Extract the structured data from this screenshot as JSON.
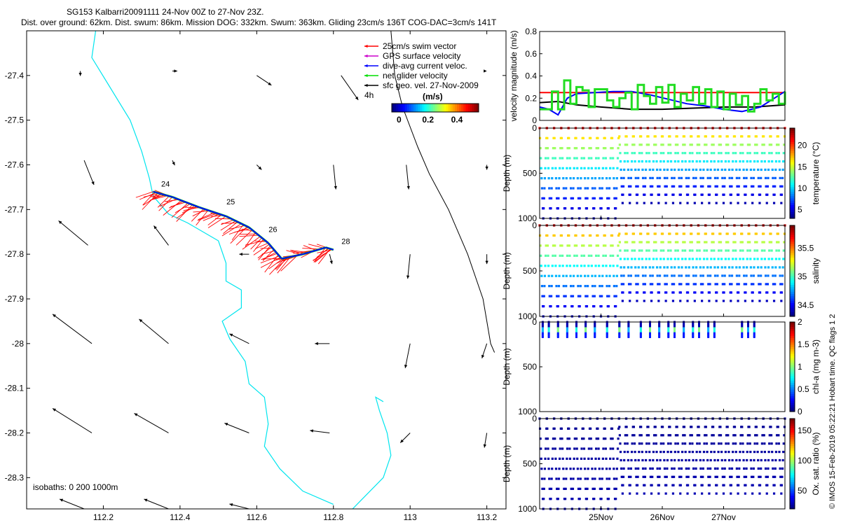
{
  "header": {
    "title_line1": "SG153 Kalbarri20091111 24-Nov 00Z to 27-Nov 23Z.",
    "title_line2": "Dist. over ground: 62km. Dist. swum: 86km. Mission DOG: 332km. Swum: 363km. Gliding 23cm/s 136T COG-DAC=3cm/s 141T"
  },
  "chart_data": [
    {
      "type": "scatter",
      "title": "SG153 Kalbarri20091111 24-Nov 00Z to 27-Nov 23Z.",
      "xlim": [
        112.0,
        113.25
      ],
      "ylim": [
        -28.37,
        -27.3
      ],
      "xticks": [
        112.2,
        112.4,
        112.6,
        112.8,
        113,
        113.2
      ],
      "yticks": [
        -27.4,
        -27.5,
        -27.6,
        -27.7,
        -27.8,
        -27.9,
        -28,
        -28.1,
        -28.2,
        -28.3
      ],
      "legend": {
        "placement": "top-right",
        "entries": [
          {
            "label": "25cm/s swim vector",
            "color": "#ff0000"
          },
          {
            "label": "GPS surface velocity",
            "color": "#cc00cc"
          },
          {
            "label": "dive-avg current veloc.",
            "color": "#0000ff"
          },
          {
            "label": "net glider velocity",
            "color": "#00dd00"
          },
          {
            "label": "sfc geo. vel. 27-Nov-2009",
            "color": "#000000"
          }
        ],
        "interval_label": "4h"
      },
      "colorbar": {
        "label": "(m/s)",
        "ticks": [
          "0",
          "0.2",
          "0.4"
        ],
        "range": [
          -0.05,
          0.55
        ]
      },
      "isobath_label": "isobaths: 0   200  1000m",
      "track": [
        {
          "lon": 112.33,
          "lat": -27.66
        },
        {
          "lon": 112.38,
          "lat": -27.672
        },
        {
          "lon": 112.45,
          "lat": -27.695
        },
        {
          "lon": 112.52,
          "lat": -27.715
        },
        {
          "lon": 112.58,
          "lat": -27.74
        },
        {
          "lon": 112.63,
          "lat": -27.775
        },
        {
          "lon": 112.665,
          "lat": -27.81
        },
        {
          "lon": 112.72,
          "lat": -27.8
        },
        {
          "lon": 112.78,
          "lat": -27.785
        },
        {
          "lon": 112.8,
          "lat": -27.79
        }
      ],
      "day_labels": [
        {
          "text": "24",
          "lon": 112.34,
          "lat": -27.655
        },
        {
          "text": "25",
          "lon": 112.51,
          "lat": -27.695
        },
        {
          "text": "26",
          "lon": 112.62,
          "lat": -27.757
        },
        {
          "text": "28",
          "lon": 112.81,
          "lat": -27.783
        }
      ],
      "geo_vectors": [
        {
          "lon": 112.14,
          "lat": -27.39,
          "u": 0.0,
          "v": -0.01
        },
        {
          "lon": 112.38,
          "lat": -27.39,
          "u": 0.01,
          "v": 0.0
        },
        {
          "lon": 112.6,
          "lat": -27.4,
          "u": 0.03,
          "v": -0.02
        },
        {
          "lon": 112.82,
          "lat": -27.4,
          "u": 0.035,
          "v": -0.05
        },
        {
          "lon": 113.2,
          "lat": -27.39,
          "u": 0.0,
          "v": 0.0
        },
        {
          "lon": 112.15,
          "lat": -27.59,
          "u": 0.02,
          "v": -0.05
        },
        {
          "lon": 112.38,
          "lat": -27.59,
          "u": 0.005,
          "v": -0.01
        },
        {
          "lon": 112.6,
          "lat": -27.6,
          "u": 0.01,
          "v": -0.01
        },
        {
          "lon": 112.8,
          "lat": -27.6,
          "u": 0.005,
          "v": -0.05
        },
        {
          "lon": 112.99,
          "lat": -27.6,
          "u": 0.005,
          "v": -0.05
        },
        {
          "lon": 113.2,
          "lat": -27.6,
          "u": 0.0,
          "v": -0.01
        },
        {
          "lon": 112.16,
          "lat": -27.78,
          "u": -0.06,
          "v": 0.05
        },
        {
          "lon": 112.37,
          "lat": -27.78,
          "u": -0.03,
          "v": 0.04
        },
        {
          "lon": 112.58,
          "lat": -27.8,
          "u": -0.02,
          "v": 0.0
        },
        {
          "lon": 112.79,
          "lat": -27.8,
          "u": 0.005,
          "v": -0.02
        },
        {
          "lon": 113.0,
          "lat": -27.8,
          "u": -0.005,
          "v": -0.05
        },
        {
          "lon": 113.2,
          "lat": -27.8,
          "u": 0.0,
          "v": -0.02
        },
        {
          "lon": 112.17,
          "lat": -28.0,
          "u": -0.08,
          "v": 0.06
        },
        {
          "lon": 112.37,
          "lat": -28.0,
          "u": -0.06,
          "v": 0.05
        },
        {
          "lon": 112.58,
          "lat": -28.0,
          "u": -0.04,
          "v": 0.02
        },
        {
          "lon": 112.79,
          "lat": -28.0,
          "u": -0.03,
          "v": 0.0
        },
        {
          "lon": 113.0,
          "lat": -28.0,
          "u": -0.01,
          "v": -0.05
        },
        {
          "lon": 113.2,
          "lat": -28.0,
          "u": -0.01,
          "v": -0.03
        },
        {
          "lon": 112.17,
          "lat": -28.2,
          "u": -0.08,
          "v": 0.05
        },
        {
          "lon": 112.37,
          "lat": -28.2,
          "u": -0.07,
          "v": 0.04
        },
        {
          "lon": 112.58,
          "lat": -28.2,
          "u": -0.05,
          "v": 0.02
        },
        {
          "lon": 112.79,
          "lat": -28.2,
          "u": -0.04,
          "v": 0.005
        },
        {
          "lon": 113.0,
          "lat": -28.2,
          "u": -0.02,
          "v": -0.02
        },
        {
          "lon": 113.2,
          "lat": -28.2,
          "u": -0.005,
          "v": -0.03
        },
        {
          "lon": 112.15,
          "lat": -28.37,
          "u": -0.05,
          "v": 0.02
        },
        {
          "lon": 112.37,
          "lat": -28.37,
          "u": -0.05,
          "v": 0.02
        },
        {
          "lon": 112.58,
          "lat": -28.37,
          "u": -0.04,
          "v": 0.01
        }
      ],
      "isobath_0m": [
        {
          "lon": 112.18,
          "lat": -27.3
        },
        {
          "lon": 112.17,
          "lat": -27.36
        },
        {
          "lon": 112.22,
          "lat": -27.43
        },
        {
          "lon": 112.27,
          "lat": -27.5
        },
        {
          "lon": 112.3,
          "lat": -27.57
        },
        {
          "lon": 112.32,
          "lat": -27.63
        },
        {
          "lon": 112.33,
          "lat": -27.67
        },
        {
          "lon": 112.37,
          "lat": -27.71
        },
        {
          "lon": 112.42,
          "lat": -27.73
        },
        {
          "lon": 112.5,
          "lat": -27.77
        },
        {
          "lon": 112.52,
          "lat": -27.82
        },
        {
          "lon": 112.52,
          "lat": -27.86
        },
        {
          "lon": 112.56,
          "lat": -27.88
        },
        {
          "lon": 112.56,
          "lat": -27.92
        },
        {
          "lon": 112.51,
          "lat": -27.95
        },
        {
          "lon": 112.53,
          "lat": -27.99
        },
        {
          "lon": 112.57,
          "lat": -28.04
        },
        {
          "lon": 112.58,
          "lat": -28.09
        },
        {
          "lon": 112.62,
          "lat": -28.12
        },
        {
          "lon": 112.63,
          "lat": -28.18
        },
        {
          "lon": 112.62,
          "lat": -28.23
        },
        {
          "lon": 112.66,
          "lat": -28.28
        },
        {
          "lon": 112.72,
          "lat": -28.33
        },
        {
          "lon": 112.8,
          "lat": -28.36
        }
      ],
      "isobath_200m": [
        {
          "lon": 112.85,
          "lat": -28.37
        },
        {
          "lon": 112.93,
          "lat": -28.3
        },
        {
          "lon": 112.95,
          "lat": -28.25
        },
        {
          "lon": 112.94,
          "lat": -28.2
        },
        {
          "lon": 112.92,
          "lat": -28.15
        },
        {
          "lon": 112.91,
          "lat": -28.12
        },
        {
          "lon": 112.93,
          "lat": -28.13
        }
      ],
      "isobath_1000m": [
        {
          "lon": 112.95,
          "lat": -27.3
        },
        {
          "lon": 112.96,
          "lat": -27.4
        },
        {
          "lon": 112.98,
          "lat": -27.47
        },
        {
          "lon": 113.02,
          "lat": -27.56
        },
        {
          "lon": 113.05,
          "lat": -27.62
        },
        {
          "lon": 113.1,
          "lat": -27.7
        },
        {
          "lon": 113.15,
          "lat": -27.8
        },
        {
          "lon": 113.19,
          "lat": -27.9
        },
        {
          "lon": 113.21,
          "lat": -28.0
        },
        {
          "lon": 113.22,
          "lat": -28.02
        }
      ]
    },
    {
      "type": "line",
      "ylabel": "velocity magnitude (m/s)",
      "ylim": [
        0,
        0.8
      ],
      "yticks": [
        "0",
        "0.2",
        "0.4",
        "0.6",
        "0.8"
      ],
      "xlim": [
        24.0,
        28.0
      ],
      "series": [
        {
          "color": "#ff0000",
          "x": [
            24.0,
            28.0
          ],
          "y": [
            0.25,
            0.25
          ]
        },
        {
          "color": "#000000",
          "x": [
            24.0,
            24.3,
            24.6,
            25.0,
            25.5,
            26.0,
            26.5,
            27.0,
            27.5,
            28.0
          ],
          "y": [
            0.16,
            0.17,
            0.14,
            0.12,
            0.1,
            0.1,
            0.11,
            0.12,
            0.12,
            0.14
          ]
        },
        {
          "color": "#0000ff",
          "x": [
            24.0,
            24.15,
            24.3,
            24.45,
            24.6,
            24.9,
            25.2,
            25.5,
            25.8,
            26.1,
            26.4,
            26.7,
            27.0,
            27.3,
            27.6,
            27.8,
            28.0
          ],
          "y": [
            0.12,
            0.1,
            0.05,
            0.2,
            0.24,
            0.25,
            0.26,
            0.26,
            0.23,
            0.19,
            0.15,
            0.13,
            0.1,
            0.08,
            0.12,
            0.19,
            0.26
          ]
        },
        {
          "color": "#22dd22",
          "x": [
            24.0,
            24.1,
            24.2,
            24.3,
            24.4,
            24.5,
            24.6,
            24.7,
            24.8,
            24.9,
            25.0,
            25.1,
            25.2,
            25.3,
            25.4,
            25.5,
            25.6,
            25.7,
            25.8,
            25.9,
            26.0,
            26.1,
            26.2,
            26.3,
            26.4,
            26.5,
            26.6,
            26.7,
            26.8,
            26.9,
            27.0,
            27.1,
            27.2,
            27.3,
            27.4,
            27.5,
            27.6,
            27.7,
            27.8,
            27.9,
            28.0
          ],
          "y": [
            0.1,
            0.1,
            0.26,
            0.1,
            0.36,
            0.15,
            0.3,
            0.27,
            0.12,
            0.28,
            0.28,
            0.18,
            0.12,
            0.2,
            0.25,
            0.1,
            0.32,
            0.22,
            0.15,
            0.3,
            0.16,
            0.32,
            0.12,
            0.24,
            0.18,
            0.3,
            0.15,
            0.28,
            0.12,
            0.26,
            0.1,
            0.24,
            0.14,
            0.22,
            0.08,
            0.15,
            0.28,
            0.18,
            0.24,
            0.15,
            0.26
          ]
        }
      ]
    },
    {
      "type": "scatter",
      "ylabel": "Depth (m)",
      "colorbar_label": "temperature (°C)",
      "colorbar_ticks": [
        "5",
        "10",
        "15",
        "20"
      ],
      "crange": [
        3,
        24
      ],
      "yticks": [
        "0",
        "500",
        "1000"
      ],
      "ylim": [
        0,
        1000
      ],
      "xlim": [
        24.0,
        28.0
      ],
      "dives": 34,
      "deep_dives_until": 25.2,
      "deep_max_depth": 1000,
      "shallow_max_depth": 830,
      "surface_value": 22,
      "bottom_value": 4
    },
    {
      "type": "scatter",
      "ylabel": "Depth (m)",
      "colorbar_label": "salinity",
      "colorbar_ticks": [
        "34.5",
        "35",
        "35.5"
      ],
      "crange": [
        34.3,
        35.9
      ],
      "yticks": [
        "0",
        "500",
        "1000"
      ],
      "ylim": [
        0,
        1000
      ],
      "xlim": [
        24.0,
        28.0
      ],
      "dives": 34,
      "deep_dives_until": 25.2,
      "deep_max_depth": 1000,
      "shallow_max_depth": 830,
      "surface_value": 35.8,
      "bottom_value": 34.4
    },
    {
      "type": "scatter",
      "ylabel": "Depth (m)",
      "colorbar_label": "chl-a (mg m-3)",
      "colorbar_ticks": [
        "0",
        "0.5",
        "1",
        "1.5",
        "2"
      ],
      "crange": [
        0,
        2
      ],
      "yticks": [
        "0",
        "500",
        "1000"
      ],
      "ylim": [
        0,
        1000
      ],
      "xlim": [
        24.0,
        28.0
      ],
      "profiles": [
        24.05,
        24.15,
        24.3,
        24.45,
        24.6,
        24.75,
        24.9,
        25.1,
        25.3,
        25.45,
        25.65,
        25.8,
        25.95,
        26.1,
        26.2,
        26.35,
        26.5,
        26.6,
        26.75,
        26.85,
        27.3,
        27.4,
        27.5
      ],
      "max_depth": 180
    },
    {
      "type": "scatter",
      "ylabel": "Depth (m)",
      "colorbar_label": "Ox. sat. ratio (%)",
      "colorbar_ticks": [
        "50",
        "100",
        "150"
      ],
      "crange": [
        20,
        170
      ],
      "yticks": [
        "0",
        "500",
        "1000"
      ],
      "ylim": [
        0,
        1000
      ],
      "xlim": [
        24.0,
        28.0
      ],
      "xticks": [
        "25Nov",
        "26Nov",
        "27Nov"
      ],
      "xtick_values": [
        25,
        26,
        27
      ],
      "dives": 34,
      "deep_dives_until": 25.2,
      "deep_max_depth": 1000,
      "shallow_max_depth": 830
    }
  ],
  "footer_note": "© IMOS 15-Feb-2019 05:22:21 Hobart time. QC flags 1  2"
}
